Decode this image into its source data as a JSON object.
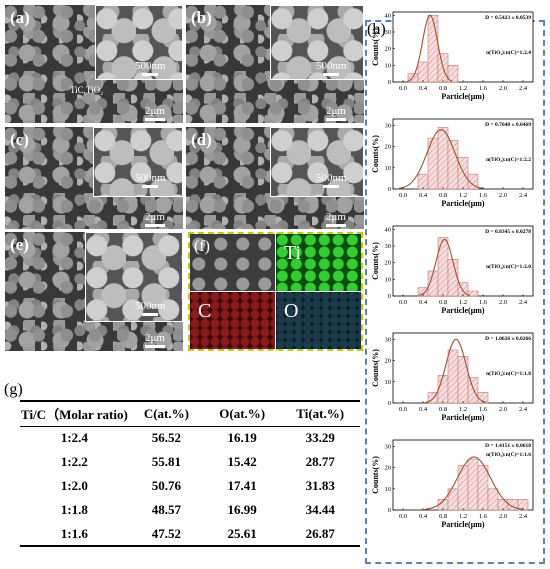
{
  "panels": [
    {
      "id": "a",
      "label": "(a)",
      "scale_inset": "500nm",
      "scale_main": "2μm",
      "annotation": "TiC,TiO₂"
    },
    {
      "id": "b",
      "label": "(b)",
      "scale_inset": "500nm",
      "scale_main": "2μm"
    },
    {
      "id": "c",
      "label": "(c)",
      "scale_inset": "500nm",
      "scale_main": "2μm"
    },
    {
      "id": "d",
      "label": "(d)",
      "scale_inset": "500nm",
      "scale_main": "2μm"
    },
    {
      "id": "e",
      "label": "(e)",
      "scale_inset": "500nm",
      "scale_main": "2μm"
    }
  ],
  "eds": {
    "label": "(f)",
    "elements": [
      "Ti",
      "C",
      "O"
    ],
    "colors": {
      "Ti": "#1fa81f",
      "C": "#8b1a1a",
      "O": "#1c3b4a"
    }
  },
  "table": {
    "label": "(g)",
    "headers": [
      "Ti/C（Molar ratio)",
      "C(at.%)",
      "O(at.%)",
      "Ti(at.%)"
    ],
    "rows": [
      [
        "1:2.4",
        "56.52",
        "16.19",
        "33.29"
      ],
      [
        "1:2.2",
        "55.81",
        "15.42",
        "28.77"
      ],
      [
        "1:2.0",
        "50.76",
        "17.41",
        "31.83"
      ],
      [
        "1:1.8",
        "48.57",
        "16.99",
        "34.44"
      ],
      [
        "1:1.6",
        "47.52",
        "25.61",
        "26.87"
      ]
    ]
  },
  "histogram_panel_label": "(h)",
  "chart_data": [
    {
      "type": "bar",
      "title": "D = 0.5423 ± 0.0539",
      "annotation": "n(TiO₂):n(C)=1:2.4",
      "xlabel": "Particle(μm)",
      "ylabel": "Counts(%)",
      "x_ticks": [
        "0.0",
        "0.4",
        "0.8",
        "1.2",
        "1.6",
        "2.0",
        "2.4"
      ],
      "y_ticks": [
        "0",
        "10",
        "20",
        "30",
        "40"
      ],
      "ylim": [
        0,
        42
      ],
      "xlim": [
        -0.2,
        2.6
      ],
      "bin_width": 0.2,
      "bins": [
        {
          "x": 0.2,
          "y": 5
        },
        {
          "x": 0.4,
          "y": 12
        },
        {
          "x": 0.6,
          "y": 40
        },
        {
          "x": 0.8,
          "y": 17
        },
        {
          "x": 1.0,
          "y": 10
        }
      ],
      "fit": {
        "mean": 0.54,
        "sigma": 0.15,
        "peak": 40
      }
    },
    {
      "type": "bar",
      "title": "D = 0.7648 ± 0.0469",
      "annotation": "n(TiO₂):n(C)=1:2.2",
      "xlabel": "Particle(μm)",
      "ylabel": "Counts(%)",
      "x_ticks": [
        "0.0",
        "0.4",
        "0.8",
        "1.2",
        "1.6",
        "2.0",
        "2.4"
      ],
      "y_ticks": [
        "0",
        "10",
        "20",
        "30"
      ],
      "ylim": [
        0,
        33
      ],
      "xlim": [
        -0.2,
        2.6
      ],
      "bin_width": 0.2,
      "bins": [
        {
          "x": 0.4,
          "y": 7
        },
        {
          "x": 0.6,
          "y": 24
        },
        {
          "x": 0.8,
          "y": 29
        },
        {
          "x": 1.0,
          "y": 23
        },
        {
          "x": 1.2,
          "y": 15
        },
        {
          "x": 1.4,
          "y": 7
        }
      ],
      "fit": {
        "mean": 0.76,
        "sigma": 0.28,
        "peak": 28
      }
    },
    {
      "type": "bar",
      "title": "D = 0.8345 ± 0.0278",
      "annotation": "n(TiO₂):n(C)=1:2.0",
      "xlabel": "Particle(μm)",
      "ylabel": "Counts(%)",
      "x_ticks": [
        "0.0",
        "0.4",
        "0.8",
        "1.2",
        "1.6",
        "2.0",
        "2.4"
      ],
      "y_ticks": [
        "0",
        "10",
        "20",
        "30",
        "40"
      ],
      "ylim": [
        0,
        42
      ],
      "xlim": [
        -0.2,
        2.6
      ],
      "bin_width": 0.2,
      "bins": [
        {
          "x": 0.4,
          "y": 5
        },
        {
          "x": 0.6,
          "y": 15
        },
        {
          "x": 0.8,
          "y": 35
        },
        {
          "x": 1.0,
          "y": 22
        },
        {
          "x": 1.2,
          "y": 8
        },
        {
          "x": 1.4,
          "y": 3
        }
      ],
      "fit": {
        "mean": 0.83,
        "sigma": 0.17,
        "peak": 34
      }
    },
    {
      "type": "bar",
      "title": "D = 1.0626 ± 0.0266",
      "annotation": "n(TiO₂):n(C)=1:1.8",
      "xlabel": "Particle(μm)",
      "ylabel": "Counts(%)",
      "x_ticks": [
        "0.0",
        "0.4",
        "0.8",
        "1.2",
        "1.6",
        "2.0",
        "2.4"
      ],
      "y_ticks": [
        "0",
        "10",
        "20",
        "30"
      ],
      "ylim": [
        0,
        33
      ],
      "xlim": [
        -0.2,
        2.6
      ],
      "bin_width": 0.2,
      "bins": [
        {
          "x": 0.6,
          "y": 5
        },
        {
          "x": 0.8,
          "y": 13
        },
        {
          "x": 1.0,
          "y": 25
        },
        {
          "x": 1.2,
          "y": 22
        },
        {
          "x": 1.4,
          "y": 12
        },
        {
          "x": 1.6,
          "y": 5
        }
      ],
      "fit": {
        "mean": 1.06,
        "sigma": 0.2,
        "peak": 30
      }
    },
    {
      "type": "bar",
      "title": "D = 1.4151 ± 0.0618",
      "annotation": "n(TiO₂):n(C)=1:1.6",
      "xlabel": "Particle(μm)",
      "ylabel": "Counts(%)",
      "x_ticks": [
        "0.0",
        "0.4",
        "0.8",
        "1.2",
        "1.6",
        "2.0",
        "2.4"
      ],
      "y_ticks": [
        "0",
        "10",
        "20",
        "30"
      ],
      "ylim": [
        0,
        33
      ],
      "xlim": [
        -0.2,
        2.6
      ],
      "bin_width": 0.2,
      "bins": [
        {
          "x": 0.8,
          "y": 5
        },
        {
          "x": 1.0,
          "y": 10
        },
        {
          "x": 1.2,
          "y": 21
        },
        {
          "x": 1.4,
          "y": 24
        },
        {
          "x": 1.6,
          "y": 21
        },
        {
          "x": 1.8,
          "y": 10
        },
        {
          "x": 2.0,
          "y": 5
        },
        {
          "x": 2.2,
          "y": 5
        },
        {
          "x": 2.4,
          "y": 5
        }
      ],
      "fit": {
        "mean": 1.42,
        "sigma": 0.33,
        "peak": 25
      }
    }
  ]
}
